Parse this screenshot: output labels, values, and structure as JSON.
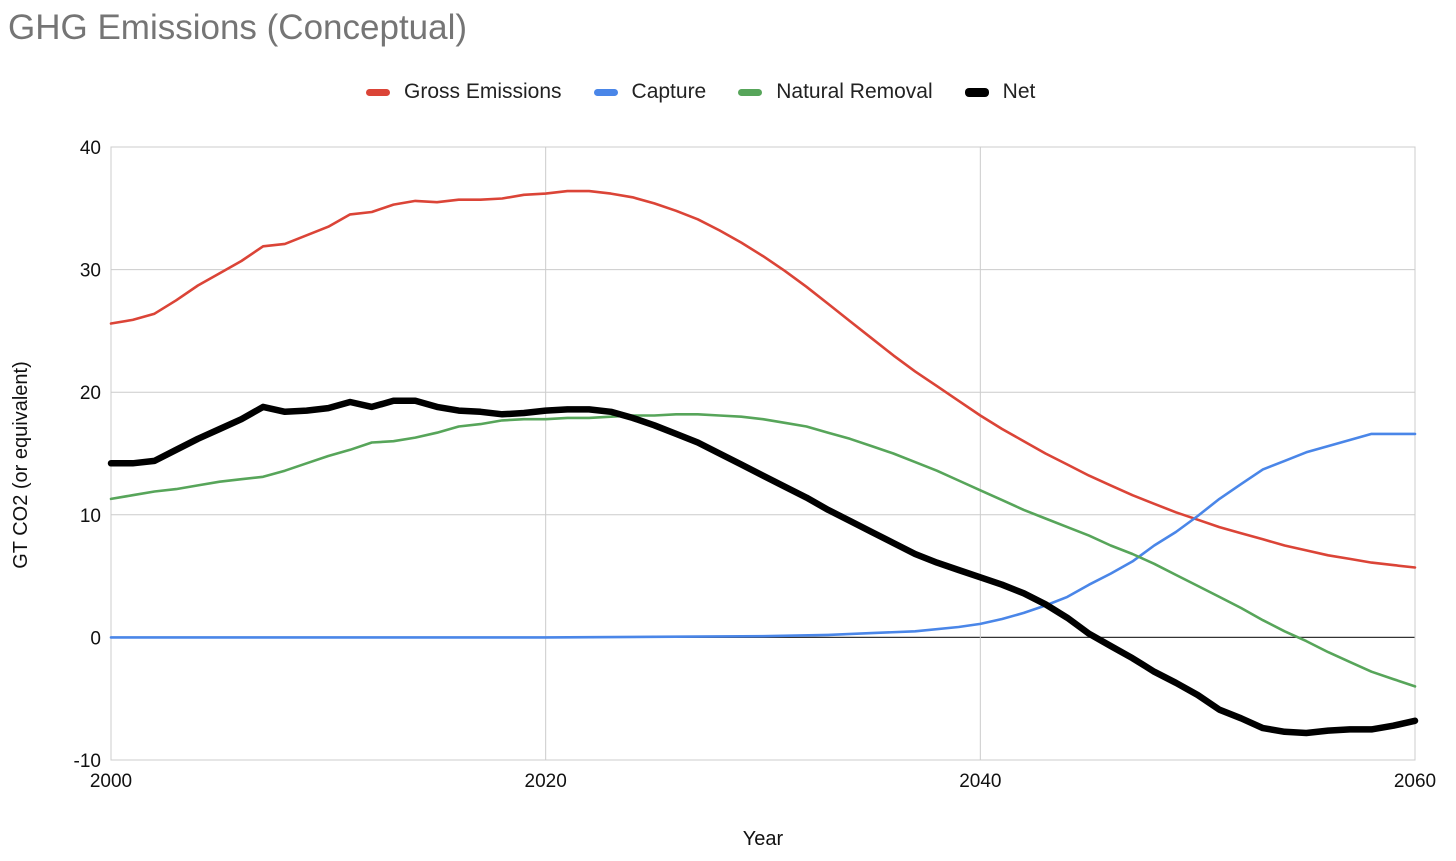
{
  "chart_data": {
    "type": "line",
    "title": "GHG Emissions (Conceptual)",
    "xlabel": "Year",
    "ylabel": "GT CO2 (or equivalent)",
    "xlim": [
      2000,
      2060
    ],
    "ylim": [
      -10,
      40
    ],
    "x_ticks": [
      2000,
      2020,
      2040,
      2060
    ],
    "y_ticks": [
      -10,
      0,
      10,
      20,
      30,
      40
    ],
    "grid": true,
    "legend_position": "top",
    "series": [
      {
        "name": "Gross Emissions",
        "color": "#db4437",
        "points": [
          [
            2000,
            25.6
          ],
          [
            2001,
            25.9
          ],
          [
            2002,
            26.4
          ],
          [
            2003,
            27.5
          ],
          [
            2004,
            28.7
          ],
          [
            2005,
            29.7
          ],
          [
            2006,
            30.7
          ],
          [
            2007,
            31.9
          ],
          [
            2008,
            32.1
          ],
          [
            2009,
            32.8
          ],
          [
            2010,
            33.5
          ],
          [
            2011,
            34.5
          ],
          [
            2012,
            34.7
          ],
          [
            2013,
            35.3
          ],
          [
            2014,
            35.6
          ],
          [
            2015,
            35.5
          ],
          [
            2016,
            35.7
          ],
          [
            2017,
            35.7
          ],
          [
            2018,
            35.8
          ],
          [
            2019,
            36.1
          ],
          [
            2020,
            36.2
          ],
          [
            2021,
            36.4
          ],
          [
            2022,
            36.4
          ],
          [
            2023,
            36.2
          ],
          [
            2024,
            35.9
          ],
          [
            2025,
            35.4
          ],
          [
            2026,
            34.8
          ],
          [
            2027,
            34.1
          ],
          [
            2028,
            33.2
          ],
          [
            2029,
            32.2
          ],
          [
            2030,
            31.1
          ],
          [
            2031,
            29.9
          ],
          [
            2032,
            28.6
          ],
          [
            2033,
            27.2
          ],
          [
            2034,
            25.8
          ],
          [
            2035,
            24.4
          ],
          [
            2036,
            23.0
          ],
          [
            2037,
            21.7
          ],
          [
            2038,
            20.5
          ],
          [
            2039,
            19.3
          ],
          [
            2040,
            18.1
          ],
          [
            2041,
            17.0
          ],
          [
            2042,
            16.0
          ],
          [
            2043,
            15.0
          ],
          [
            2044,
            14.1
          ],
          [
            2045,
            13.2
          ],
          [
            2046,
            12.4
          ],
          [
            2047,
            11.6
          ],
          [
            2048,
            10.9
          ],
          [
            2049,
            10.2
          ],
          [
            2050,
            9.6
          ],
          [
            2051,
            9.0
          ],
          [
            2052,
            8.5
          ],
          [
            2053,
            8.0
          ],
          [
            2054,
            7.5
          ],
          [
            2055,
            7.1
          ],
          [
            2056,
            6.7
          ],
          [
            2057,
            6.4
          ],
          [
            2058,
            6.1
          ],
          [
            2059,
            5.9
          ],
          [
            2060,
            5.7
          ]
        ]
      },
      {
        "name": "Capture",
        "color": "#4a86e8",
        "points": [
          [
            2000,
            0
          ],
          [
            2010,
            0
          ],
          [
            2020,
            0
          ],
          [
            2025,
            0.05
          ],
          [
            2030,
            0.1
          ],
          [
            2033,
            0.2
          ],
          [
            2035,
            0.35
          ],
          [
            2037,
            0.5
          ],
          [
            2039,
            0.85
          ],
          [
            2040,
            1.1
          ],
          [
            2041,
            1.5
          ],
          [
            2042,
            2.0
          ],
          [
            2043,
            2.6
          ],
          [
            2044,
            3.3
          ],
          [
            2045,
            4.3
          ],
          [
            2046,
            5.2
          ],
          [
            2047,
            6.2
          ],
          [
            2048,
            7.5
          ],
          [
            2049,
            8.6
          ],
          [
            2050,
            9.9
          ],
          [
            2051,
            11.3
          ],
          [
            2052,
            12.5
          ],
          [
            2053,
            13.7
          ],
          [
            2054,
            14.4
          ],
          [
            2055,
            15.1
          ],
          [
            2056,
            15.6
          ],
          [
            2057,
            16.1
          ],
          [
            2058,
            16.6
          ],
          [
            2059,
            16.6
          ],
          [
            2060,
            16.6
          ]
        ]
      },
      {
        "name": "Natural Removal",
        "color": "#57a55a",
        "points": [
          [
            2000,
            11.3
          ],
          [
            2001,
            11.6
          ],
          [
            2002,
            11.9
          ],
          [
            2003,
            12.1
          ],
          [
            2004,
            12.4
          ],
          [
            2005,
            12.7
          ],
          [
            2006,
            12.9
          ],
          [
            2007,
            13.1
          ],
          [
            2008,
            13.6
          ],
          [
            2009,
            14.2
          ],
          [
            2010,
            14.8
          ],
          [
            2011,
            15.3
          ],
          [
            2012,
            15.9
          ],
          [
            2013,
            16.0
          ],
          [
            2014,
            16.3
          ],
          [
            2015,
            16.7
          ],
          [
            2016,
            17.2
          ],
          [
            2017,
            17.4
          ],
          [
            2018,
            17.7
          ],
          [
            2019,
            17.8
          ],
          [
            2020,
            17.8
          ],
          [
            2021,
            17.9
          ],
          [
            2022,
            17.9
          ],
          [
            2023,
            18.0
          ],
          [
            2024,
            18.1
          ],
          [
            2025,
            18.1
          ],
          [
            2026,
            18.2
          ],
          [
            2027,
            18.2
          ],
          [
            2028,
            18.1
          ],
          [
            2029,
            18.0
          ],
          [
            2030,
            17.8
          ],
          [
            2031,
            17.5
          ],
          [
            2032,
            17.2
          ],
          [
            2033,
            16.7
          ],
          [
            2034,
            16.2
          ],
          [
            2035,
            15.6
          ],
          [
            2036,
            15.0
          ],
          [
            2037,
            14.3
          ],
          [
            2038,
            13.6
          ],
          [
            2039,
            12.8
          ],
          [
            2040,
            12.0
          ],
          [
            2041,
            11.2
          ],
          [
            2042,
            10.4
          ],
          [
            2043,
            9.7
          ],
          [
            2044,
            9.0
          ],
          [
            2045,
            8.3
          ],
          [
            2046,
            7.5
          ],
          [
            2047,
            6.8
          ],
          [
            2048,
            6.0
          ],
          [
            2049,
            5.1
          ],
          [
            2050,
            4.2
          ],
          [
            2051,
            3.3
          ],
          [
            2052,
            2.4
          ],
          [
            2053,
            1.4
          ],
          [
            2054,
            0.5
          ],
          [
            2055,
            -0.3
          ],
          [
            2056,
            -1.2
          ],
          [
            2057,
            -2.0
          ],
          [
            2058,
            -2.8
          ],
          [
            2059,
            -3.4
          ],
          [
            2060,
            -4.0
          ]
        ]
      },
      {
        "name": "Net",
        "color": "#000000",
        "points": [
          [
            2000,
            14.2
          ],
          [
            2001,
            14.2
          ],
          [
            2002,
            14.4
          ],
          [
            2003,
            15.3
          ],
          [
            2004,
            16.2
          ],
          [
            2005,
            17.0
          ],
          [
            2006,
            17.8
          ],
          [
            2007,
            18.8
          ],
          [
            2008,
            18.4
          ],
          [
            2009,
            18.5
          ],
          [
            2010,
            18.7
          ],
          [
            2011,
            19.2
          ],
          [
            2012,
            18.8
          ],
          [
            2013,
            19.3
          ],
          [
            2014,
            19.3
          ],
          [
            2015,
            18.8
          ],
          [
            2016,
            18.5
          ],
          [
            2017,
            18.4
          ],
          [
            2018,
            18.2
          ],
          [
            2019,
            18.3
          ],
          [
            2020,
            18.5
          ],
          [
            2021,
            18.6
          ],
          [
            2022,
            18.6
          ],
          [
            2023,
            18.4
          ],
          [
            2024,
            17.9
          ],
          [
            2025,
            17.3
          ],
          [
            2026,
            16.6
          ],
          [
            2027,
            15.9
          ],
          [
            2028,
            15.0
          ],
          [
            2029,
            14.1
          ],
          [
            2030,
            13.2
          ],
          [
            2031,
            12.3
          ],
          [
            2032,
            11.4
          ],
          [
            2033,
            10.4
          ],
          [
            2034,
            9.5
          ],
          [
            2035,
            8.6
          ],
          [
            2036,
            7.7
          ],
          [
            2037,
            6.8
          ],
          [
            2038,
            6.1
          ],
          [
            2039,
            5.5
          ],
          [
            2040,
            4.9
          ],
          [
            2041,
            4.3
          ],
          [
            2042,
            3.6
          ],
          [
            2043,
            2.7
          ],
          [
            2044,
            1.6
          ],
          [
            2045,
            0.3
          ],
          [
            2046,
            -0.7
          ],
          [
            2047,
            -1.7
          ],
          [
            2048,
            -2.8
          ],
          [
            2049,
            -3.7
          ],
          [
            2050,
            -4.7
          ],
          [
            2051,
            -5.9
          ],
          [
            2052,
            -6.6
          ],
          [
            2053,
            -7.4
          ],
          [
            2054,
            -7.7
          ],
          [
            2055,
            -7.8
          ],
          [
            2056,
            -7.6
          ],
          [
            2057,
            -7.5
          ],
          [
            2058,
            -7.5
          ],
          [
            2059,
            -7.2
          ],
          [
            2060,
            -6.8
          ]
        ]
      }
    ]
  }
}
